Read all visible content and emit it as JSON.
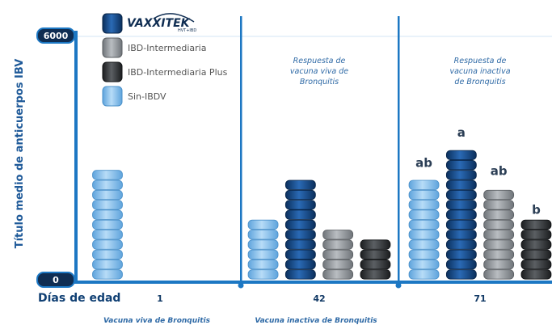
{
  "chart_data": {
    "type": "bar",
    "title": "",
    "ylabel": "Título medio de anticuerpos IBV",
    "xlabel": "Días de edad",
    "ylim": [
      0,
      6000
    ],
    "y_ticks": [
      "0",
      "6000"
    ],
    "brand": {
      "logo_text": "VAXXITEK",
      "logo_sub": "HVT+IBD"
    },
    "colors": {
      "VAXXITEK": "#1a4f8c",
      "IBD-Intermediaria": "#8f9499",
      "IBD-Intermediaria Plus": "#3a3e42",
      "Sin-IBDV": "#7fb9e6",
      "axis": "#1c77c3"
    },
    "legend": [
      {
        "key": "VAXXITEK",
        "label": "",
        "is_logo": true
      },
      {
        "key": "IBD-Intermediaria",
        "label": "IBD-Intermediaria"
      },
      {
        "key": "IBD-Intermediaria Plus",
        "label": "IBD-Intermediaria Plus"
      },
      {
        "key": "Sin-IBDV",
        "label": "Sin-IBDV"
      }
    ],
    "groups": [
      {
        "day": "1",
        "note": "",
        "bars": [
          {
            "series": "Sin-IBDV",
            "value": 2900,
            "sig": ""
          }
        ]
      },
      {
        "day": "42",
        "note": "Respuesta de vacuna viva de Bronquitis",
        "bars": [
          {
            "series": "Sin-IBDV",
            "value": 1650,
            "sig": ""
          },
          {
            "series": "VAXXITEK",
            "value": 2650,
            "sig": ""
          },
          {
            "series": "IBD-Intermediaria",
            "value": 1250,
            "sig": ""
          },
          {
            "series": "IBD-Intermediaria Plus",
            "value": 1100,
            "sig": ""
          }
        ]
      },
      {
        "day": "71",
        "note": "Respuesta de vacuna inactiva de Bronquitis",
        "bars": [
          {
            "series": "Sin-IBDV",
            "value": 2650,
            "sig": "ab"
          },
          {
            "series": "VAXXITEK",
            "value": 3400,
            "sig": "a"
          },
          {
            "series": "IBD-Intermediaria",
            "value": 2450,
            "sig": "ab"
          },
          {
            "series": "IBD-Intermediaria Plus",
            "value": 1500,
            "sig": "b"
          }
        ]
      }
    ],
    "vaccination_notes": [
      {
        "text": "Vacuna viva de Bronquitis",
        "under_day": "1"
      },
      {
        "text": "Vacuna inactiva de Bronquitis",
        "under_day": "42"
      }
    ]
  }
}
